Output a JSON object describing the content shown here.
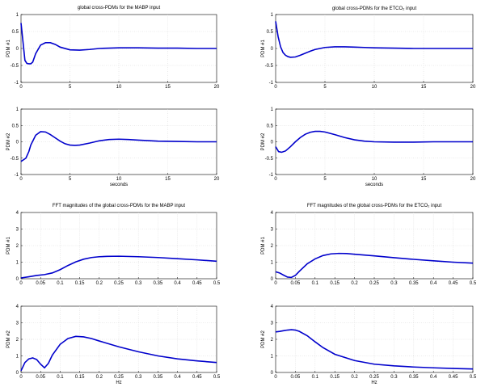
{
  "chart_data": [
    {
      "type": "line",
      "title": "global cross-PDMs for the MABP input",
      "xlabel": "",
      "ylabel": "PDM #1",
      "xlim": [
        0,
        20
      ],
      "ylim": [
        -1,
        1
      ],
      "xticks": [
        0,
        5,
        10,
        15,
        20
      ],
      "yticks": [
        -1,
        -0.5,
        0,
        0.5,
        1
      ],
      "grid": true,
      "series": [
        {
          "x": [
            0,
            0.2,
            0.4,
            0.6,
            0.8,
            1,
            1.2,
            1.5,
            2,
            2.5,
            3,
            3.5,
            4,
            5,
            6,
            7,
            8,
            10,
            12,
            14,
            16,
            18,
            20
          ],
          "y": [
            0.75,
            0.2,
            -0.35,
            -0.44,
            -0.45,
            -0.45,
            -0.4,
            -0.15,
            0.1,
            0.17,
            0.17,
            0.12,
            0.04,
            -0.04,
            -0.05,
            -0.03,
            0,
            0.02,
            0.02,
            0.01,
            0.01,
            0,
            0
          ]
        }
      ]
    },
    {
      "type": "line",
      "title": "global cross-PDMs for the ETCO₂ input",
      "xlabel": "",
      "ylabel": "PDM #1",
      "xlim": [
        0,
        20
      ],
      "ylim": [
        -1,
        1
      ],
      "xticks": [
        0,
        5,
        10,
        15,
        20
      ],
      "yticks": [
        -1,
        -0.5,
        0,
        0.5,
        1
      ],
      "grid": true,
      "series": [
        {
          "x": [
            0,
            0.25,
            0.5,
            0.75,
            1,
            1.25,
            1.5,
            2,
            2.5,
            3,
            3.5,
            4,
            5,
            6,
            7,
            8,
            9,
            10,
            12,
            14,
            16,
            18,
            20
          ],
          "y": [
            0.8,
            0.35,
            0.05,
            -0.12,
            -0.2,
            -0.24,
            -0.26,
            -0.25,
            -0.2,
            -0.14,
            -0.08,
            -0.03,
            0.03,
            0.05,
            0.05,
            0.04,
            0.03,
            0.02,
            0.01,
            0,
            0,
            0,
            0
          ]
        }
      ]
    },
    {
      "type": "line",
      "title": "",
      "xlabel": "seconds",
      "ylabel": "PDM #2",
      "xlim": [
        0,
        20
      ],
      "ylim": [
        -1,
        1
      ],
      "xticks": [
        0,
        5,
        10,
        15,
        20
      ],
      "yticks": [
        -1,
        -0.5,
        0,
        0.5,
        1
      ],
      "grid": true,
      "series": [
        {
          "x": [
            0,
            0.5,
            0.8,
            1,
            1.5,
            2,
            2.5,
            3,
            3.5,
            4,
            4.5,
            5,
            5.5,
            6,
            7,
            8,
            9,
            10,
            11,
            12,
            14,
            16,
            18,
            20
          ],
          "y": [
            -0.6,
            -0.5,
            -0.3,
            -0.1,
            0.2,
            0.31,
            0.3,
            0.22,
            0.12,
            0.02,
            -0.06,
            -0.1,
            -0.11,
            -0.1,
            -0.04,
            0.03,
            0.07,
            0.08,
            0.07,
            0.05,
            0.02,
            0.01,
            0,
            0
          ]
        }
      ]
    },
    {
      "type": "line",
      "title": "",
      "xlabel": "seconds",
      "ylabel": "PDM #2",
      "xlim": [
        0,
        20
      ],
      "ylim": [
        -1,
        1
      ],
      "xticks": [
        0,
        5,
        10,
        15,
        20
      ],
      "yticks": [
        -1,
        -0.5,
        0,
        0.5,
        1
      ],
      "grid": true,
      "series": [
        {
          "x": [
            0,
            0.3,
            0.6,
            1,
            1.5,
            2,
            2.5,
            3,
            3.5,
            4,
            4.5,
            5,
            5.5,
            6,
            7,
            8,
            9,
            10,
            12,
            14,
            16,
            18,
            20
          ],
          "y": [
            -0.15,
            -0.3,
            -0.32,
            -0.28,
            -0.15,
            0,
            0.13,
            0.23,
            0.29,
            0.32,
            0.32,
            0.3,
            0.26,
            0.22,
            0.13,
            0.06,
            0.02,
            0,
            -0.01,
            -0.01,
            0,
            0,
            0
          ]
        }
      ]
    },
    {
      "type": "line",
      "title": "FFT magnitudes of the global cross-PDMs for the MABP input",
      "xlabel": "",
      "ylabel": "PDM #1",
      "xlim": [
        0,
        0.5
      ],
      "ylim": [
        0,
        4
      ],
      "xticks": [
        0,
        0.05,
        0.1,
        0.15,
        0.2,
        0.25,
        0.3,
        0.35,
        0.4,
        0.45,
        0.5
      ],
      "yticks": [
        0,
        1,
        2,
        3,
        4
      ],
      "grid": true,
      "series": [
        {
          "x": [
            0,
            0.02,
            0.04,
            0.06,
            0.08,
            0.1,
            0.12,
            0.14,
            0.16,
            0.18,
            0.2,
            0.22,
            0.25,
            0.3,
            0.35,
            0.4,
            0.45,
            0.5
          ],
          "y": [
            0.05,
            0.12,
            0.2,
            0.25,
            0.35,
            0.55,
            0.8,
            1.02,
            1.18,
            1.28,
            1.33,
            1.35,
            1.36,
            1.33,
            1.28,
            1.21,
            1.14,
            1.06
          ]
        }
      ]
    },
    {
      "type": "line",
      "title": "FFT magnitudes of the global cross-PDMs for the ETCO₂ input",
      "xlabel": "",
      "ylabel": "PDM #1",
      "xlim": [
        0,
        0.5
      ],
      "ylim": [
        0,
        4
      ],
      "xticks": [
        0,
        0.05,
        0.1,
        0.15,
        0.2,
        0.25,
        0.3,
        0.35,
        0.4,
        0.45,
        0.5
      ],
      "yticks": [
        0,
        1,
        2,
        3,
        4
      ],
      "grid": true,
      "series": [
        {
          "x": [
            0,
            0.01,
            0.02,
            0.03,
            0.04,
            0.05,
            0.06,
            0.08,
            0.1,
            0.12,
            0.14,
            0.16,
            0.18,
            0.2,
            0.25,
            0.3,
            0.35,
            0.4,
            0.45,
            0.5
          ],
          "y": [
            0.42,
            0.35,
            0.22,
            0.1,
            0.08,
            0.2,
            0.45,
            0.9,
            1.2,
            1.4,
            1.5,
            1.53,
            1.52,
            1.48,
            1.38,
            1.27,
            1.17,
            1.08,
            1.0,
            0.94
          ]
        }
      ]
    },
    {
      "type": "line",
      "title": "",
      "xlabel": "Hz",
      "ylabel": "PDM #2",
      "xlim": [
        0,
        0.5
      ],
      "ylim": [
        0,
        4
      ],
      "xticks": [
        0,
        0.05,
        0.1,
        0.15,
        0.2,
        0.25,
        0.3,
        0.35,
        0.4,
        0.45,
        0.5
      ],
      "yticks": [
        0,
        1,
        2,
        3,
        4
      ],
      "grid": true,
      "series": [
        {
          "x": [
            0,
            0.01,
            0.02,
            0.03,
            0.04,
            0.05,
            0.06,
            0.07,
            0.08,
            0.1,
            0.12,
            0.14,
            0.16,
            0.18,
            0.2,
            0.25,
            0.3,
            0.35,
            0.4,
            0.45,
            0.5
          ],
          "y": [
            0.1,
            0.6,
            0.82,
            0.88,
            0.78,
            0.5,
            0.28,
            0.55,
            1.05,
            1.7,
            2.05,
            2.18,
            2.15,
            2.05,
            1.9,
            1.55,
            1.25,
            1.0,
            0.82,
            0.7,
            0.6
          ]
        }
      ]
    },
    {
      "type": "line",
      "title": "",
      "xlabel": "Hz",
      "ylabel": "PDM #2",
      "xlim": [
        0,
        0.5
      ],
      "ylim": [
        0,
        4
      ],
      "xticks": [
        0,
        0.05,
        0.1,
        0.15,
        0.2,
        0.25,
        0.3,
        0.35,
        0.4,
        0.45,
        0.5
      ],
      "yticks": [
        0,
        1,
        2,
        3,
        4
      ],
      "grid": true,
      "series": [
        {
          "x": [
            0,
            0.01,
            0.02,
            0.03,
            0.04,
            0.05,
            0.06,
            0.08,
            0.1,
            0.12,
            0.15,
            0.2,
            0.25,
            0.3,
            0.35,
            0.4,
            0.45,
            0.5
          ],
          "y": [
            2.45,
            2.48,
            2.52,
            2.56,
            2.58,
            2.56,
            2.48,
            2.22,
            1.85,
            1.5,
            1.1,
            0.72,
            0.5,
            0.4,
            0.33,
            0.28,
            0.24,
            0.21
          ]
        }
      ]
    }
  ]
}
